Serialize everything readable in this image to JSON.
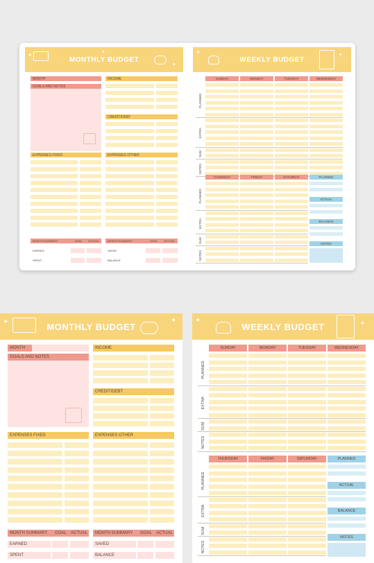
{
  "monthly": {
    "title": "MONTHLY BUDGET",
    "month": "MONTH",
    "goals": "GOALS AND NOTES",
    "income": "INCOME",
    "credit": "CREDIT/DEBT",
    "exp_fixed": "EXPENSES FIXED",
    "exp_other": "EXPENSES OTHER",
    "summary": "MONTH SUMMARY",
    "goal": "GOAL",
    "actual": "ACTUAL",
    "earned": "EARNED",
    "spent": "SPENT",
    "saved": "SAVED",
    "balance": "BALANCE"
  },
  "weekly": {
    "title": "WEEKLY BUDGET",
    "days_top": [
      "SUNDAY",
      "MONDAY",
      "TUESDAY",
      "WEDNESDAY"
    ],
    "days_bottom": [
      "THURSDAY",
      "FRIDAY",
      "SATURDAY"
    ],
    "planned": "PLANNED",
    "extra": "EXTRA",
    "sum": "SUM",
    "notes": "NOTES",
    "actual": "ACTUAL",
    "balance": "BALANCE"
  },
  "colors": {
    "header": "#f8d47a",
    "pink": "#ef9a8c",
    "yellow": "#f6c962",
    "blue": "#9fd2e6"
  },
  "icons": [
    "credit-card-icon",
    "piggy-bank-icon",
    "wallet-icon",
    "purse-icon",
    "calculator-icon",
    "star-icon"
  ]
}
